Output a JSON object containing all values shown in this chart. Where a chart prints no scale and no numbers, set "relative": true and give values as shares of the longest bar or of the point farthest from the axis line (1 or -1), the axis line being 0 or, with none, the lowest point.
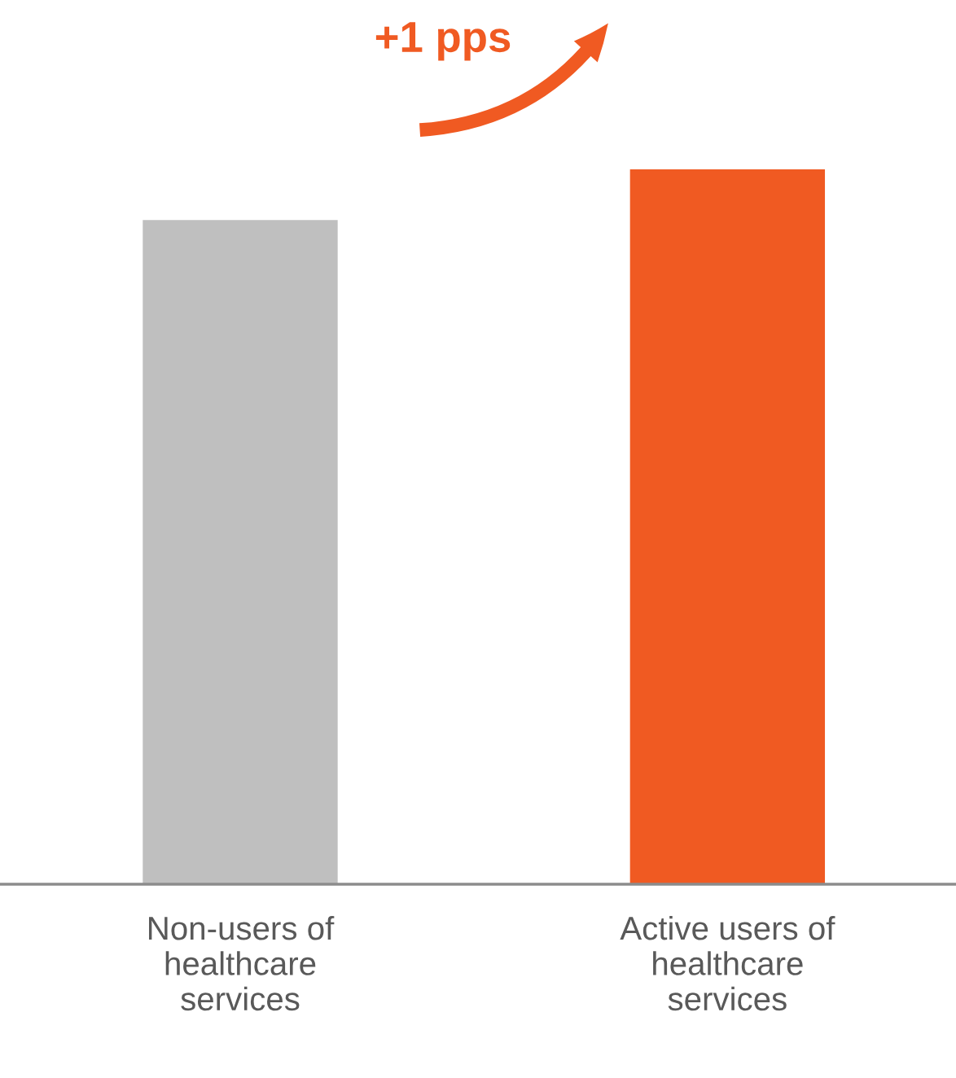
{
  "chart_data": {
    "type": "bar",
    "relative": true,
    "categories": [
      "Non-users of\nhealthcare\nservices",
      "Active users of\nhealthcare\nservices"
    ],
    "values": [
      0.929,
      1
    ],
    "colors": [
      "#bfbfbf",
      "#f05a22"
    ],
    "annotations": [
      "+1 pps"
    ]
  }
}
